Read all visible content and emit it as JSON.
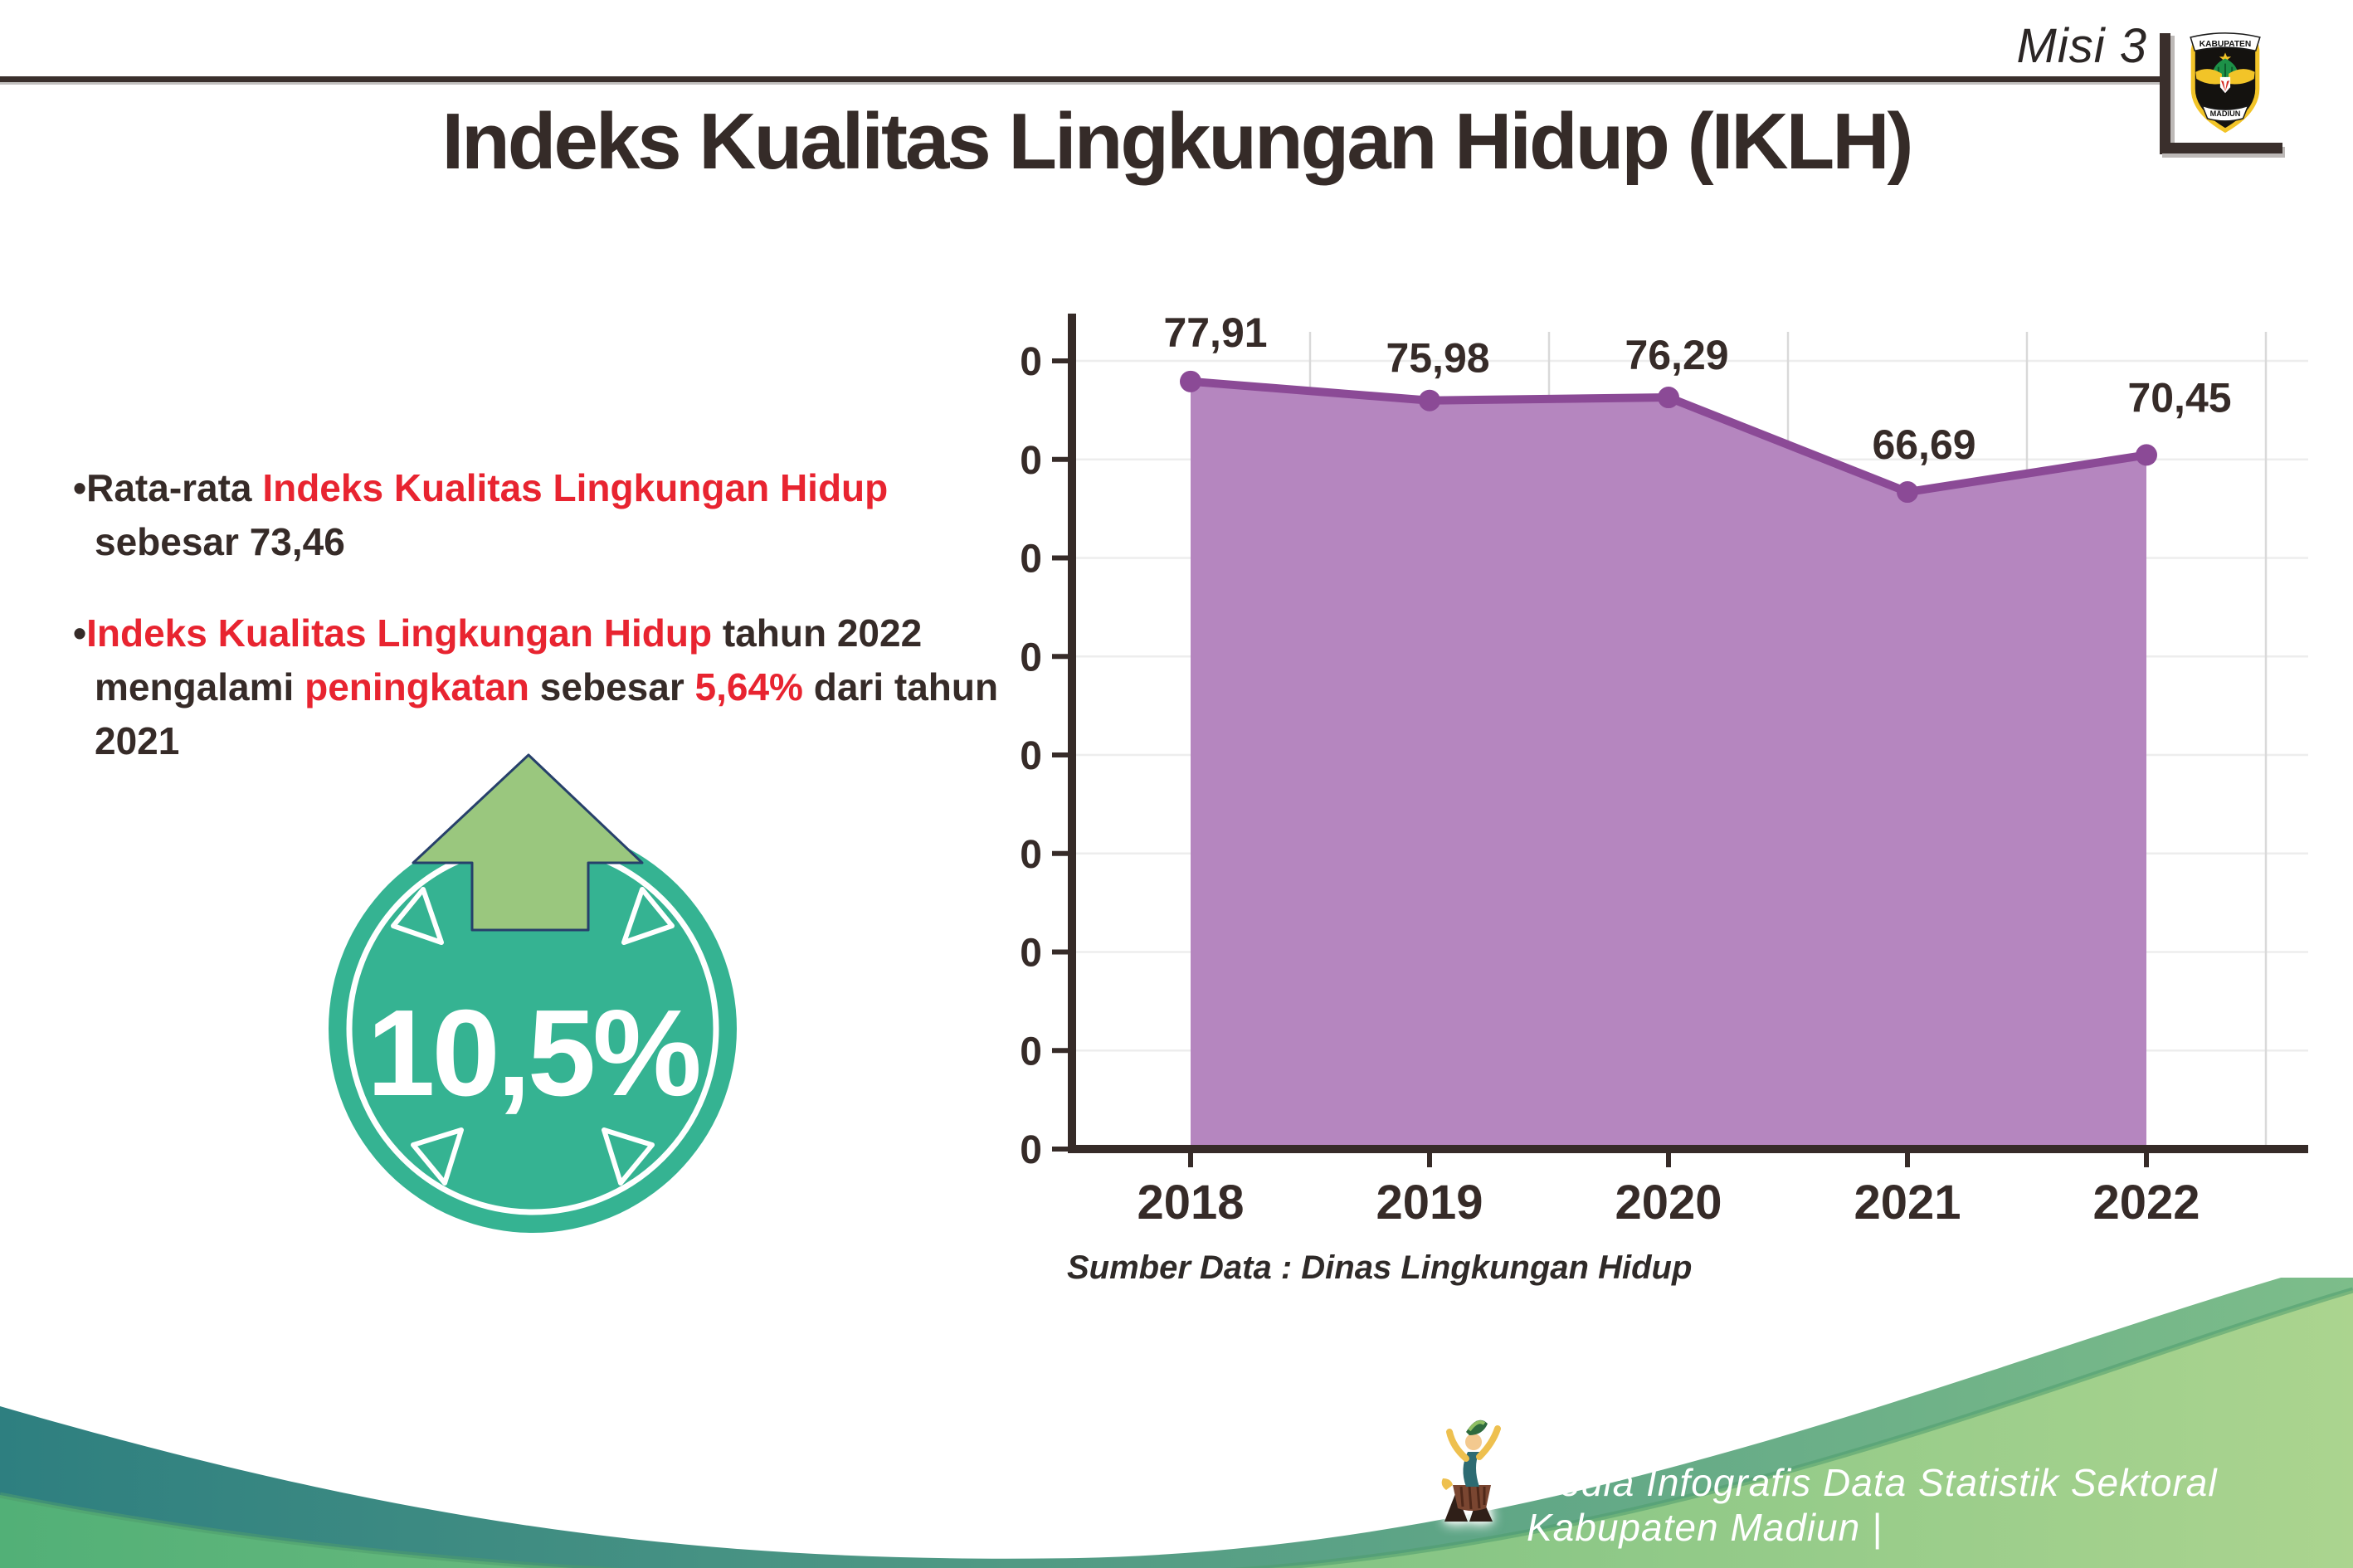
{
  "header": {
    "misi_label": "Misi 3",
    "logo_top": "KABUPATEN",
    "logo_bottom": "MADIUN"
  },
  "title": "Indeks Kualitas Lingkungan Hidup (IKLH)",
  "bullets": [
    {
      "segments": [
        {
          "text": "Rata-rata ",
          "color": "dark"
        },
        {
          "text": "Indeks Kualitas Lingkungan Hidup",
          "color": "red"
        },
        {
          "text": " sebesar 73,46",
          "color": "dark"
        }
      ]
    },
    {
      "segments": [
        {
          "text": "Indeks Kualitas Lingkungan Hidup",
          "color": "red"
        },
        {
          "text": " tahun 2022 mengalami ",
          "color": "dark"
        },
        {
          "text": "peningkatan",
          "color": "red"
        },
        {
          "text": " sebesar ",
          "color": "dark"
        },
        {
          "text": "5,64%",
          "color": "red"
        },
        {
          "text": " dari tahun 2021",
          "color": "dark"
        }
      ]
    }
  ],
  "badge": {
    "value": "10,5%"
  },
  "icons": {
    "badge_arrow": "arrow-up",
    "logo": "kabupaten-madiun-seal",
    "footer_mascot": "dancer-mascot"
  },
  "chart_data": {
    "type": "area",
    "categories": [
      "2018",
      "2019",
      "2020",
      "2021",
      "2022"
    ],
    "values": [
      77.91,
      75.98,
      76.29,
      66.69,
      70.45
    ],
    "point_labels": [
      "77,91",
      "75,98",
      "76,29",
      "66,69",
      "70,45"
    ],
    "ylim": [
      0,
      80
    ],
    "ytick_step": 10,
    "grid": "on",
    "legend": "none",
    "xlabel": "",
    "ylabel": "",
    "source_note": "Sumber Data : Dinas Lingkungan Hidup"
  },
  "footer": {
    "credit": "Media Infografis Data Statistik Sektoral Kabupaten Madiun |"
  },
  "colors": {
    "accent_red": "#e82430",
    "text_dark": "#362b28",
    "chart_line": "#8b4a96",
    "chart_fill": "#b586bf",
    "grid_v": "#d9d9d9",
    "grid_h": "#ededed",
    "badge_teal": "#35b392",
    "arrow_green": "#9ac77e",
    "arrow_outline": "#27406b",
    "wave_teal_start": "#2e7f80",
    "wave_teal_end": "#7dbd8a",
    "wave_green_start": "#52b077",
    "wave_green_end": "#abd48f"
  }
}
